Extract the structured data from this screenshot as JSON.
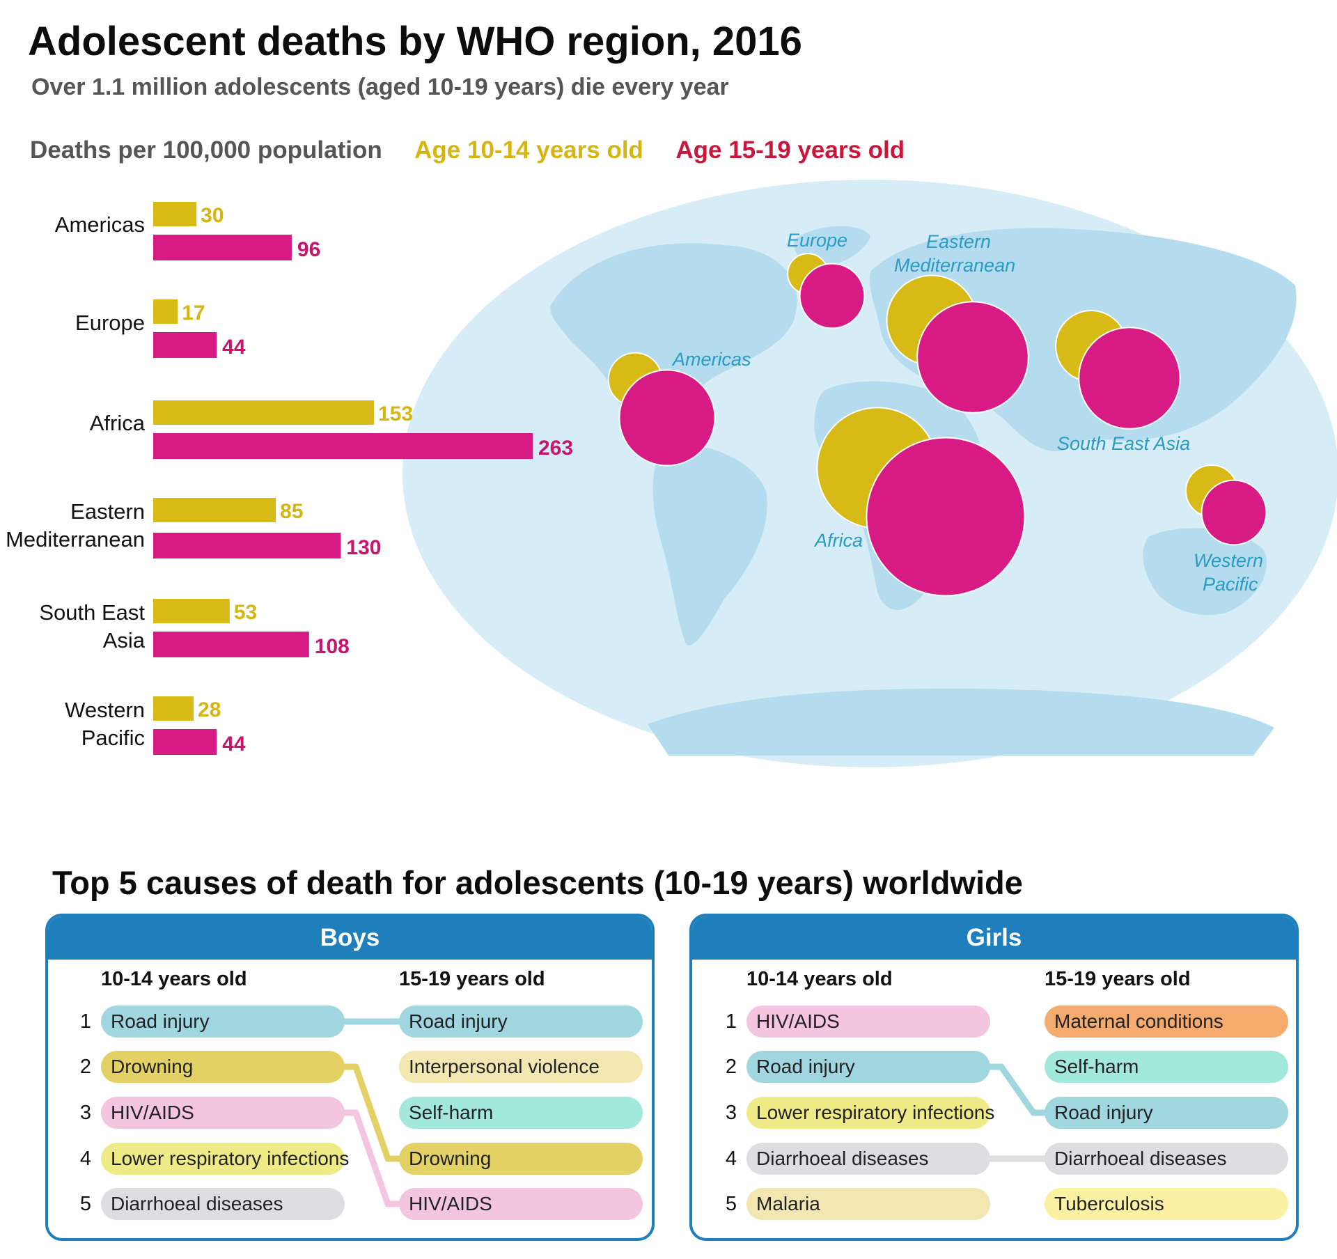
{
  "title": "Adolescent deaths by WHO region, 2016",
  "subtitle": "Over 1.1 million adolescents (aged 10-19 years) die every year",
  "legend": {
    "metric": "Deaths per 100,000 population",
    "age_10_14": "Age 10-14 years old",
    "age_15_19": "Age 15-19 years old"
  },
  "colors": {
    "age_10_14": "#d7ba16",
    "age_15_19": "#d81b84",
    "legend_15_19_text": "#c9163c",
    "ocean": "#d6ecf6",
    "land": "#b4dcee",
    "map_label": "#2a9bc4",
    "panel_blue": "#1f7fbd"
  },
  "chart_data": [
    {
      "type": "bar",
      "orientation": "horizontal",
      "title": "Adolescent deaths by WHO region, 2016",
      "xlabel": "Deaths per 100,000 population",
      "categories": [
        "Americas",
        "Europe",
        "Africa",
        "Eastern Mediterranean",
        "South East Asia",
        "Western Pacific"
      ],
      "series": [
        {
          "name": "Age 10-14 years old",
          "values": [
            30,
            17,
            153,
            85,
            53,
            28
          ]
        },
        {
          "name": "Age 15-19 years old",
          "values": [
            96,
            44,
            263,
            130,
            108,
            44
          ]
        }
      ],
      "grid": false
    }
  ],
  "region_labels": {
    "americas": [
      "Americas"
    ],
    "europe": [
      "Europe"
    ],
    "africa": [
      "Africa"
    ],
    "eastern_mediterranean": [
      "Eastern",
      "Mediterranean"
    ],
    "south_east_asia": [
      "South East",
      "Asia"
    ],
    "western_pacific": [
      "Western",
      "Pacific"
    ]
  },
  "map": {
    "labels": {
      "americas": "Americas",
      "europe": "Europe",
      "eastern_mediterranean_1": "Eastern",
      "eastern_mediterranean_2": "Mediterranean",
      "africa": "Africa",
      "south_east_asia": "South East Asia",
      "western_pacific_1": "Western",
      "western_pacific_2": "Pacific"
    }
  },
  "causes": {
    "title": "Top 5 causes of death for adolescents (10-19 years) worldwide",
    "ranks": [
      "1",
      "2",
      "3",
      "4",
      "5"
    ],
    "boys": {
      "header": "Boys",
      "col_10_14": "10-14 years old",
      "col_15_19": "15-19 years old",
      "items_10_14": [
        {
          "label": "Road injury",
          "color": "#9fd6e0"
        },
        {
          "label": "Drowning",
          "color": "#e3d166"
        },
        {
          "label": "HIV/AIDS",
          "color": "#f3c5e0"
        },
        {
          "label": "Lower respiratory infections",
          "color": "#eeeb86"
        },
        {
          "label": "Diarrhoeal diseases",
          "color": "#dedde2"
        }
      ],
      "items_15_19": [
        {
          "label": "Road injury",
          "color": "#9fd6e0"
        },
        {
          "label": "Interpersonal violence",
          "color": "#f2e6b1"
        },
        {
          "label": "Self-harm",
          "color": "#a3e8dd"
        },
        {
          "label": "Drowning",
          "color": "#e3d166"
        },
        {
          "label": "HIV/AIDS",
          "color": "#f3c5e0"
        }
      ]
    },
    "girls": {
      "header": "Girls",
      "col_10_14": "10-14 years old",
      "col_15_19": "15-19 years old",
      "items_10_14": [
        {
          "label": "HIV/AIDS",
          "color": "#f3c5e0"
        },
        {
          "label": "Road injury",
          "color": "#9fd6e0"
        },
        {
          "label": "Lower respiratory infections",
          "color": "#eeeb86"
        },
        {
          "label": "Diarrhoeal diseases",
          "color": "#dedde2"
        },
        {
          "label": "Malaria",
          "color": "#f2e6b1"
        }
      ],
      "items_15_19": [
        {
          "label": "Maternal conditions",
          "color": "#f5aa6e"
        },
        {
          "label": "Self-harm",
          "color": "#a3e8dd"
        },
        {
          "label": "Road injury",
          "color": "#9fd6e0"
        },
        {
          "label": "Diarrhoeal diseases",
          "color": "#dedde2"
        },
        {
          "label": "Tuberculosis",
          "color": "#fbf1a3"
        }
      ]
    }
  }
}
